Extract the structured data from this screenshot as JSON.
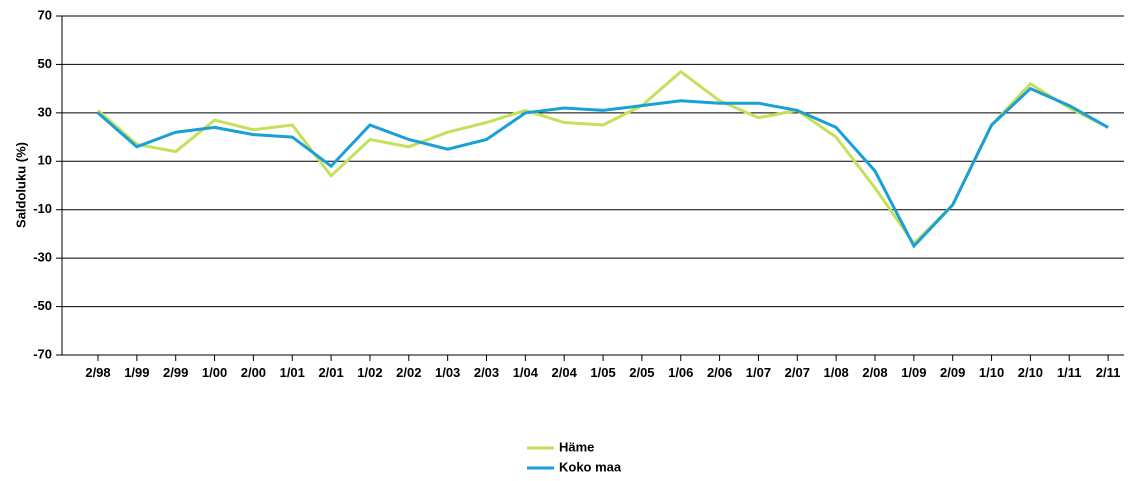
{
  "chart_data": {
    "type": "line",
    "title": "",
    "xlabel": "",
    "ylabel": "Saldoluku (%)",
    "ylim": [
      -70,
      70
    ],
    "yticks": [
      70,
      50,
      30,
      10,
      -10,
      -30,
      -50,
      -70
    ],
    "grid": true,
    "legend_position": "bottom-center",
    "categories": [
      "2/98",
      "1/99",
      "2/99",
      "1/00",
      "2/00",
      "1/01",
      "2/01",
      "1/02",
      "2/02",
      "1/03",
      "2/03",
      "1/04",
      "2/04",
      "1/05",
      "2/05",
      "1/06",
      "2/06",
      "1/07",
      "2/07",
      "1/08",
      "2/08",
      "1/09",
      "2/09",
      "1/10",
      "2/10",
      "1/11",
      "2/11"
    ],
    "series": [
      {
        "name": "Häme",
        "color": "#c5e05a",
        "values": [
          31,
          17,
          14,
          27,
          23,
          25,
          4,
          19,
          16,
          22,
          26,
          31,
          26,
          25,
          33,
          47,
          35,
          28,
          31,
          20,
          -1,
          -24,
          -8,
          25,
          42,
          32,
          24
        ]
      },
      {
        "name": "Koko maa",
        "color": "#1a9fd6",
        "values": [
          30,
          16,
          22,
          24,
          21,
          20,
          8,
          25,
          19,
          15,
          19,
          30,
          32,
          31,
          33,
          35,
          34,
          34,
          31,
          24,
          6,
          -25,
          -8,
          25,
          40,
          33,
          24
        ]
      }
    ]
  }
}
